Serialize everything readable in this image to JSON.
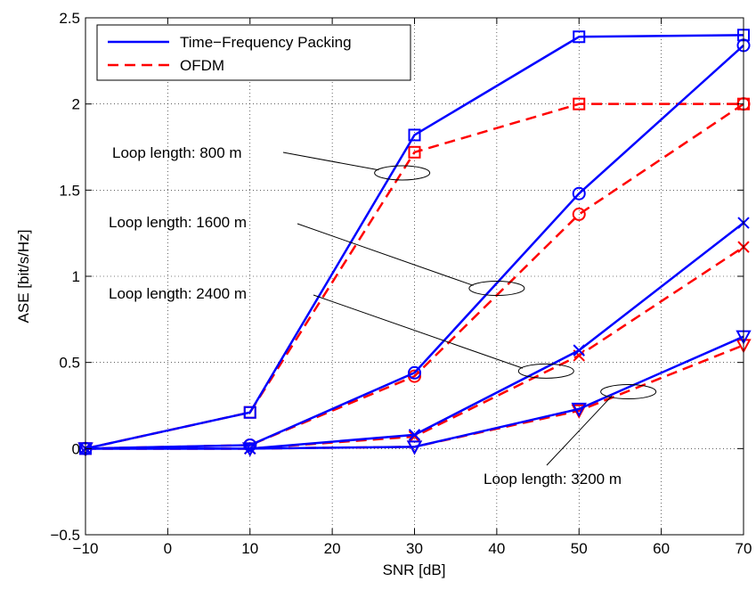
{
  "chart_data": {
    "type": "line",
    "title": "",
    "xlabel": "SNR [dB]",
    "ylabel": "ASE [bit/s/Hz]",
    "xlim": [
      -10,
      70
    ],
    "ylim": [
      -0.5,
      2.5
    ],
    "xticks": [
      -10,
      0,
      10,
      20,
      30,
      40,
      50,
      60,
      70
    ],
    "yticks": [
      -0.5,
      0,
      0.5,
      1,
      1.5,
      2,
      2.5
    ],
    "xtick_labels": [
      "−10",
      "0",
      "10",
      "20",
      "30",
      "40",
      "50",
      "60",
      "70"
    ],
    "ytick_labels": [
      "−0.5",
      "0",
      "0.5",
      "1",
      "1.5",
      "2",
      "2.5"
    ],
    "grid": true,
    "legend": {
      "placement": "top-left",
      "entries": [
        {
          "label": "Time−Frequency Packing",
          "color": "#0000ff",
          "style": "solid"
        },
        {
          "label": "OFDM",
          "color": "#ff0000",
          "style": "dashed"
        }
      ]
    },
    "x": [
      -10,
      10,
      30,
      50,
      70
    ],
    "series": [
      {
        "group": "800 m",
        "method": "Time-Frequency Packing",
        "color": "#0000ff",
        "style": "solid",
        "marker": "square",
        "values": [
          0,
          0.21,
          1.82,
          2.39,
          2.4
        ]
      },
      {
        "group": "800 m",
        "method": "OFDM",
        "color": "#ff0000",
        "style": "dashed",
        "marker": "square",
        "values": [
          0,
          0.21,
          1.72,
          2.0,
          2.0
        ]
      },
      {
        "group": "1600 m",
        "method": "Time-Frequency Packing",
        "color": "#0000ff",
        "style": "solid",
        "marker": "circle",
        "values": [
          0,
          0.02,
          0.44,
          1.48,
          2.34
        ]
      },
      {
        "group": "1600 m",
        "method": "OFDM",
        "color": "#ff0000",
        "style": "dashed",
        "marker": "circle",
        "values": [
          0,
          0.02,
          0.42,
          1.36,
          2.0
        ]
      },
      {
        "group": "2400 m",
        "method": "Time-Frequency Packing",
        "color": "#0000ff",
        "style": "solid",
        "marker": "x",
        "values": [
          0,
          0.0,
          0.08,
          0.57,
          1.31
        ]
      },
      {
        "group": "2400 m",
        "method": "OFDM",
        "color": "#ff0000",
        "style": "dashed",
        "marker": "x",
        "values": [
          0,
          0.0,
          0.07,
          0.54,
          1.17
        ]
      },
      {
        "group": "3200 m",
        "method": "Time-Frequency Packing",
        "color": "#0000ff",
        "style": "solid",
        "marker": "triangle-down",
        "values": [
          0,
          0.0,
          0.01,
          0.23,
          0.65
        ]
      },
      {
        "group": "3200 m",
        "method": "OFDM",
        "color": "#ff0000",
        "style": "dashed",
        "marker": "triangle-down",
        "values": [
          0,
          0.0,
          0.01,
          0.22,
          0.6
        ]
      }
    ],
    "annotations": [
      {
        "text": "Loop length: 800 m",
        "ellipse_at": [
          28.5,
          1.6
        ]
      },
      {
        "text": "Loop length: 1600 m",
        "ellipse_at": [
          40,
          0.93
        ]
      },
      {
        "text": "Loop length: 2400 m",
        "ellipse_at": [
          46,
          0.45
        ]
      },
      {
        "text": "Loop length: 3200 m",
        "ellipse_at": [
          56,
          0.33
        ]
      }
    ]
  }
}
